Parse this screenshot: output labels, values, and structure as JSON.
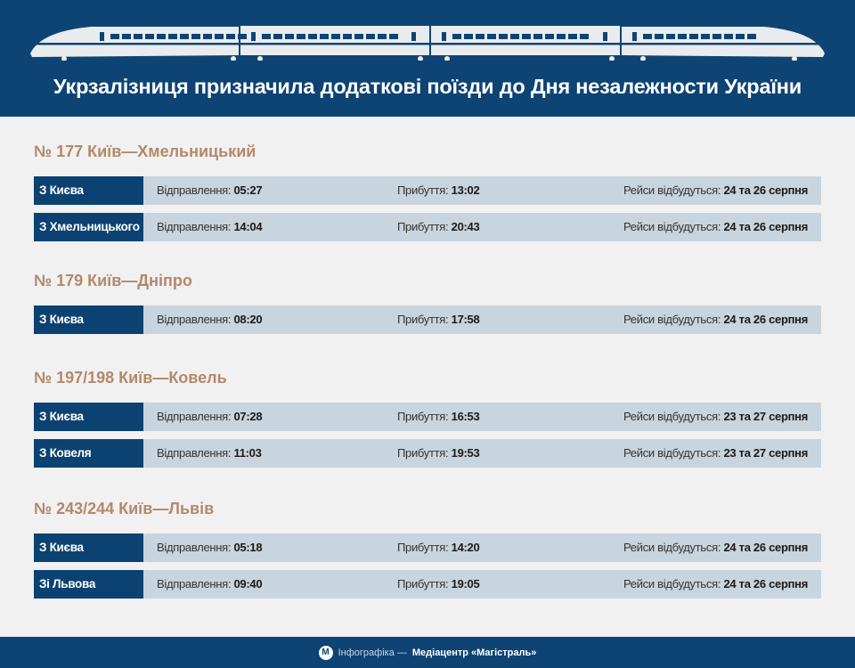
{
  "header": {
    "title": "Укрзалізниця призначила додаткові поїзди до Дня незалежности України",
    "icon": "train-illustration"
  },
  "labels": {
    "departure": "Відправлення: ",
    "arrival": "Прибуття: ",
    "schedule": "Рейси відбудуться: "
  },
  "sections": [
    {
      "heading": "№ 177 Київ—Хмельницький",
      "rows": [
        {
          "from": "З Києва",
          "departure": "05:27",
          "arrival": "13:02",
          "dates": "24 та 26 серпня"
        },
        {
          "from": "З Хмельницького",
          "departure": "14:04",
          "arrival": "20:43",
          "dates": "24 та 26 серпня"
        }
      ]
    },
    {
      "heading": "№ 179 Київ—Дніпро",
      "rows": [
        {
          "from": "З Києва",
          "departure": "08:20",
          "arrival": "17:58",
          "dates": "24 та 26 серпня"
        }
      ]
    },
    {
      "heading": "№ 197/198 Київ—Ковель",
      "rows": [
        {
          "from": "З Києва",
          "departure": "07:28",
          "arrival": "16:53",
          "dates": "23 та 27 серпня"
        },
        {
          "from": "З Ковеля",
          "departure": "11:03",
          "arrival": "19:53",
          "dates": "23 та 27 серпня"
        }
      ]
    },
    {
      "heading": "№ 243/244 Київ—Львів",
      "rows": [
        {
          "from": "З Києва",
          "departure": "05:18",
          "arrival": "14:20",
          "dates": "24 та 26 серпня"
        },
        {
          "from": "Зі Львова",
          "departure": "09:40",
          "arrival": "19:05",
          "dates": "24 та 26 серпня"
        }
      ]
    }
  ],
  "footer": {
    "prefix": "Інфографіка — ",
    "source": "Медіацентр «Магістраль»",
    "logo_icon": "mediacenter-logo"
  },
  "colors": {
    "navy": "#0e4474",
    "row": "#c8d4de",
    "heading": "#b2896a",
    "background": "#f1f1f2"
  }
}
